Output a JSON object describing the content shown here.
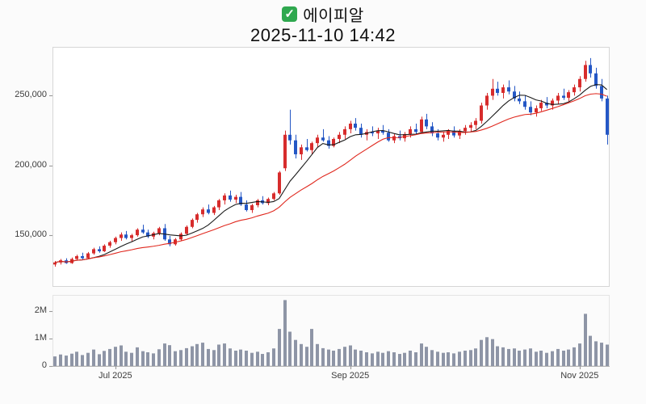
{
  "header": {
    "title": "에이피알",
    "datetime": "2025-11-10 14:42",
    "checkbox_checked": true
  },
  "chart_data": {
    "type": "candlestick",
    "title": "에이피알",
    "subtitle": "2025-11-10 14:42",
    "grid": false,
    "legend_position": "none",
    "price_axis": {
      "range": [
        113000,
        285000
      ],
      "ticks": [
        {
          "v": 250000,
          "label": "250,000"
        },
        {
          "v": 200000,
          "label": "200,000"
        },
        {
          "v": 150000,
          "label": "150,000"
        }
      ]
    },
    "volume_axis": {
      "max": 2500000,
      "ticks": [
        {
          "v": 2000000,
          "label": "2M"
        },
        {
          "v": 1000000,
          "label": "1M"
        },
        {
          "v": 0,
          "label": "0"
        }
      ]
    },
    "x_axis": {
      "ticks": [
        {
          "index": 11,
          "label": "Jul 2025"
        },
        {
          "index": 54,
          "label": "Sep 2025"
        },
        {
          "index": 96,
          "label": "Nov 2025"
        }
      ]
    },
    "overlays": [
      {
        "name": "ma-short",
        "window": 8,
        "color": "#1a1a1a"
      },
      {
        "name": "ma-long",
        "window": 20,
        "color": "#e0281e"
      }
    ],
    "colors": {
      "up": "#d72c2c",
      "down": "#2457c5",
      "volume_bar": "#8e95a6",
      "axis_text": "#3c3c3c",
      "border": "#d6d6d6",
      "icon_green": "#2fa84f"
    },
    "candles_format": [
      "open",
      "high",
      "low",
      "close",
      "volume"
    ],
    "candles": [
      [
        129000,
        131500,
        127500,
        130500,
        350000
      ],
      [
        130500,
        133000,
        129000,
        132000,
        420000
      ],
      [
        132000,
        133500,
        129500,
        130000,
        380000
      ],
      [
        130000,
        134000,
        129500,
        133000,
        450000
      ],
      [
        133000,
        136000,
        132000,
        135000,
        520000
      ],
      [
        135000,
        137500,
        132500,
        133500,
        400000
      ],
      [
        133500,
        138000,
        133000,
        137000,
        480000
      ],
      [
        137000,
        141000,
        136000,
        140000,
        600000
      ],
      [
        140000,
        142000,
        137500,
        138500,
        430000
      ],
      [
        138500,
        143500,
        138000,
        142500,
        550000
      ],
      [
        142500,
        146000,
        141000,
        145000,
        620000
      ],
      [
        145000,
        149000,
        143500,
        148000,
        700000
      ],
      [
        148000,
        152000,
        146000,
        150500,
        750000
      ],
      [
        150500,
        153000,
        147000,
        148000,
        520000
      ],
      [
        148000,
        151000,
        145500,
        150000,
        480000
      ],
      [
        150000,
        155000,
        149000,
        154000,
        680000
      ],
      [
        154000,
        157500,
        151000,
        152000,
        540000
      ],
      [
        152000,
        154000,
        148000,
        149000,
        500000
      ],
      [
        149000,
        152500,
        147000,
        151500,
        460000
      ],
      [
        151500,
        156000,
        150000,
        155000,
        610000
      ],
      [
        155000,
        158000,
        146000,
        147000,
        820000
      ],
      [
        147000,
        149500,
        142000,
        143500,
        760000
      ],
      [
        143500,
        148000,
        142500,
        147000,
        540000
      ],
      [
        147000,
        152000,
        146000,
        151000,
        580000
      ],
      [
        151000,
        157000,
        150000,
        156000,
        650000
      ],
      [
        156000,
        162000,
        155000,
        161000,
        720000
      ],
      [
        161000,
        166000,
        159000,
        165000,
        800000
      ],
      [
        165000,
        170000,
        163000,
        168500,
        850000
      ],
      [
        168500,
        172000,
        165000,
        166000,
        620000
      ],
      [
        166000,
        171000,
        164500,
        170000,
        580000
      ],
      [
        170000,
        176000,
        168000,
        175000,
        780000
      ],
      [
        175000,
        180000,
        172000,
        178500,
        820000
      ],
      [
        178500,
        182000,
        174000,
        175500,
        640000
      ],
      [
        175500,
        179000,
        173000,
        177500,
        560000
      ],
      [
        177500,
        181000,
        171000,
        172000,
        600000
      ],
      [
        172000,
        175000,
        167000,
        168000,
        560000
      ],
      [
        168000,
        172500,
        166000,
        171500,
        480000
      ],
      [
        171500,
        176000,
        170000,
        175000,
        520000
      ],
      [
        175000,
        178000,
        172000,
        173000,
        440000
      ],
      [
        173000,
        177000,
        171500,
        176000,
        500000
      ],
      [
        176000,
        181000,
        175000,
        180000,
        640000
      ],
      [
        180000,
        196000,
        179000,
        195000,
        1350000
      ],
      [
        198000,
        225000,
        196000,
        222000,
        2400000
      ],
      [
        222000,
        240000,
        215000,
        218000,
        1250000
      ],
      [
        218000,
        222000,
        205000,
        208000,
        950000
      ],
      [
        208000,
        215000,
        204000,
        213000,
        800000
      ],
      [
        213000,
        219000,
        210000,
        211000,
        700000
      ],
      [
        211000,
        217000,
        208000,
        216000,
        1350000
      ],
      [
        216000,
        222000,
        213000,
        220000,
        800000
      ],
      [
        220000,
        226000,
        217000,
        218000,
        650000
      ],
      [
        218000,
        221000,
        212000,
        214000,
        600000
      ],
      [
        214000,
        220000,
        213000,
        219000,
        560000
      ],
      [
        219000,
        224000,
        216000,
        222000,
        620000
      ],
      [
        222000,
        228000,
        219000,
        226000,
        700000
      ],
      [
        226000,
        232000,
        223000,
        230000,
        750000
      ],
      [
        230000,
        234000,
        225000,
        227000,
        600000
      ],
      [
        227000,
        230000,
        220000,
        222000,
        560000
      ],
      [
        222000,
        226000,
        218000,
        224000,
        500000
      ],
      [
        224000,
        228000,
        221000,
        223000,
        460000
      ],
      [
        223000,
        227000,
        219000,
        225000,
        520000
      ],
      [
        225000,
        229000,
        222000,
        223500,
        480000
      ],
      [
        223500,
        226000,
        217000,
        218000,
        540000
      ],
      [
        218000,
        223000,
        216000,
        221000,
        500000
      ],
      [
        221000,
        225000,
        218000,
        219500,
        440000
      ],
      [
        219500,
        224000,
        217000,
        222500,
        480000
      ],
      [
        222500,
        228000,
        220000,
        226000,
        560000
      ],
      [
        226000,
        230000,
        222000,
        224000,
        500000
      ],
      [
        224000,
        235000,
        223000,
        233000,
        820000
      ],
      [
        233000,
        237000,
        226000,
        228000,
        700000
      ],
      [
        228000,
        231000,
        221000,
        223000,
        580000
      ],
      [
        223000,
        226000,
        218000,
        220000,
        520000
      ],
      [
        220000,
        224000,
        217000,
        222000,
        480000
      ],
      [
        222000,
        226000,
        219000,
        225000,
        500000
      ],
      [
        225000,
        228000,
        220000,
        221500,
        460000
      ],
      [
        221500,
        226000,
        219000,
        224500,
        520000
      ],
      [
        224500,
        229000,
        222000,
        227000,
        560000
      ],
      [
        227000,
        231000,
        224000,
        229000,
        580000
      ],
      [
        229000,
        234000,
        226000,
        232000,
        640000
      ],
      [
        232000,
        245000,
        230000,
        243000,
        950000
      ],
      [
        243000,
        252000,
        240000,
        250000,
        1050000
      ],
      [
        250000,
        262000,
        247000,
        255000,
        980000
      ],
      [
        255000,
        260000,
        250000,
        252000,
        720000
      ],
      [
        252000,
        258000,
        248000,
        256000,
        680000
      ],
      [
        256000,
        261000,
        251000,
        253000,
        620000
      ],
      [
        253000,
        257000,
        246000,
        248000,
        640000
      ],
      [
        248000,
        253000,
        244000,
        246000,
        560000
      ],
      [
        246000,
        250000,
        240000,
        242000,
        600000
      ],
      [
        242000,
        246000,
        236000,
        238000,
        640000
      ],
      [
        238000,
        243000,
        235000,
        241000,
        520000
      ],
      [
        241000,
        247000,
        239000,
        245000,
        560000
      ],
      [
        245000,
        249000,
        241000,
        243000,
        480000
      ],
      [
        243000,
        248000,
        240000,
        246500,
        540000
      ],
      [
        246500,
        252000,
        244000,
        250000,
        620000
      ],
      [
        250000,
        255000,
        247000,
        248500,
        560000
      ],
      [
        248500,
        254000,
        246000,
        252500,
        600000
      ],
      [
        252500,
        258000,
        250000,
        256000,
        680000
      ],
      [
        256000,
        264000,
        253000,
        262000,
        820000
      ],
      [
        262000,
        275000,
        260000,
        272000,
        1900000
      ],
      [
        272000,
        277000,
        263000,
        266000,
        1100000
      ],
      [
        266000,
        270000,
        255000,
        257000,
        900000
      ],
      [
        257000,
        262000,
        246000,
        248000,
        850000
      ],
      [
        248000,
        250000,
        215000,
        222000,
        780000
      ]
    ]
  }
}
